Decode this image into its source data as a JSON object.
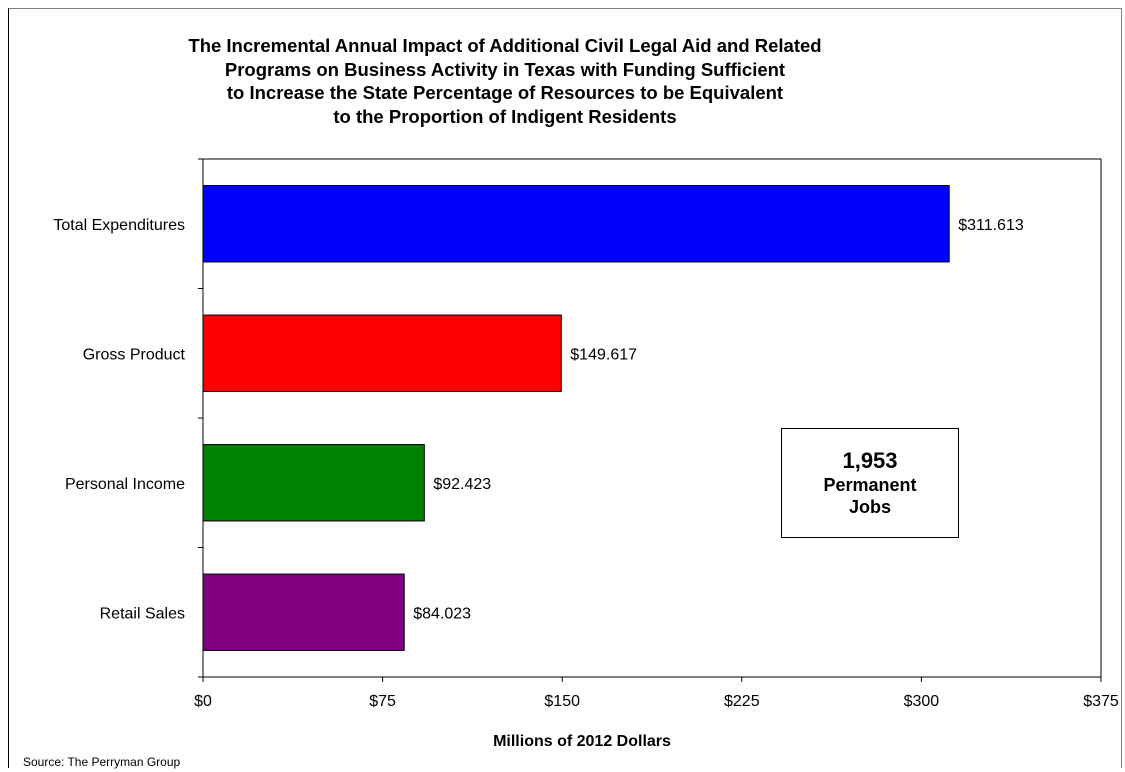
{
  "chart_data": {
    "type": "bar",
    "orientation": "horizontal",
    "title_lines": [
      "The Incremental Annual Impact of Additional Civil Legal Aid and Related",
      "Programs on Business Activity in Texas with Funding Sufficient",
      "to Increase the State Percentage of Resources to be Equivalent",
      "to the Proportion of Indigent Residents"
    ],
    "categories": [
      "Total Expenditures",
      "Gross Product",
      "Personal Income",
      "Retail Sales"
    ],
    "values": [
      311.613,
      149.617,
      92.423,
      84.023
    ],
    "data_labels": [
      "$311.613",
      "$149.617",
      "$92.423",
      "$84.023"
    ],
    "colors": [
      "#0000ff",
      "#ff0000",
      "#008000",
      "#800080"
    ],
    "xlabel": "Millions of 2012 Dollars",
    "xlim": [
      0,
      375
    ],
    "x_ticks": [
      0,
      75,
      150,
      225,
      300,
      375
    ],
    "x_tick_labels": [
      "$0",
      "$75",
      "$150",
      "$225",
      "$300",
      "$375"
    ],
    "grid": false,
    "legend": "none"
  },
  "annotation": {
    "number": "1,953",
    "line1": "Permanent",
    "line2": "Jobs"
  },
  "source": "Source: The Perryman Group"
}
